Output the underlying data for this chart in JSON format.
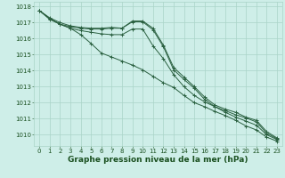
{
  "background_color": "#ceeee8",
  "grid_color": "#aad4c8",
  "line_color": "#2a6040",
  "marker_color": "#2a6040",
  "xlabel": "Graphe pression niveau de la mer (hPa)",
  "xlabel_color": "#1a5020",
  "xlabel_fontsize": 6.5,
  "xlim": [
    -0.5,
    23.5
  ],
  "ylim": [
    1009.3,
    1018.3
  ],
  "yticks": [
    1010,
    1011,
    1012,
    1013,
    1014,
    1015,
    1016,
    1017,
    1018
  ],
  "xticks": [
    0,
    1,
    2,
    3,
    4,
    5,
    6,
    7,
    8,
    9,
    10,
    11,
    12,
    13,
    14,
    15,
    16,
    17,
    18,
    19,
    20,
    21,
    22,
    23
  ],
  "tick_fontsize": 5.0,
  "tick_color": "#1a5020",
  "series": [
    {
      "x": [
        0,
        1,
        2,
        3,
        4,
        5,
        6,
        7,
        8,
        9,
        10,
        11,
        12,
        13,
        14,
        15,
        16,
        17,
        18,
        19,
        20,
        21,
        22,
        23
      ],
      "y": [
        1017.75,
        1017.3,
        1017.0,
        1016.8,
        1016.7,
        1016.65,
        1016.65,
        1016.7,
        1016.65,
        1017.1,
        1017.1,
        1016.65,
        1015.6,
        1014.2,
        1013.6,
        1013.0,
        1012.35,
        1011.85,
        1011.6,
        1011.4,
        1011.1,
        1010.9,
        1010.2,
        1009.8
      ]
    },
    {
      "x": [
        0,
        1,
        2,
        3,
        4,
        5,
        6,
        7,
        8,
        9,
        10,
        11,
        12,
        13,
        14,
        15,
        16,
        17,
        18,
        19,
        20,
        21,
        22,
        23
      ],
      "y": [
        1017.75,
        1017.25,
        1016.9,
        1016.75,
        1016.65,
        1016.6,
        1016.6,
        1016.65,
        1016.65,
        1017.05,
        1017.05,
        1016.55,
        1015.5,
        1014.05,
        1013.45,
        1012.9,
        1012.2,
        1011.75,
        1011.5,
        1011.25,
        1011.05,
        1010.8,
        1010.1,
        1009.75
      ]
    },
    {
      "x": [
        0,
        1,
        2,
        3,
        4,
        5,
        6,
        7,
        8,
        9,
        10,
        11,
        12,
        13,
        14,
        15,
        16,
        17,
        18,
        19,
        20,
        21,
        22,
        23
      ],
      "y": [
        1017.75,
        1017.25,
        1016.9,
        1016.65,
        1016.5,
        1016.4,
        1016.3,
        1016.25,
        1016.25,
        1016.6,
        1016.6,
        1015.55,
        1014.75,
        1013.75,
        1013.0,
        1012.45,
        1012.05,
        1011.75,
        1011.4,
        1011.1,
        1010.85,
        1010.6,
        1010.0,
        1009.7
      ]
    },
    {
      "x": [
        0,
        1,
        2,
        3,
        4,
        5,
        6,
        7,
        8,
        9,
        10,
        11,
        12,
        13,
        14,
        15,
        16,
        17,
        18,
        19,
        20,
        21,
        22,
        23
      ],
      "y": [
        1017.75,
        1017.2,
        1016.9,
        1016.65,
        1016.25,
        1015.7,
        1015.1,
        1014.85,
        1014.6,
        1014.35,
        1014.05,
        1013.65,
        1013.25,
        1012.95,
        1012.45,
        1012.0,
        1011.75,
        1011.45,
        1011.2,
        1010.9,
        1010.55,
        1010.3,
        1009.85,
        1009.6
      ]
    }
  ]
}
